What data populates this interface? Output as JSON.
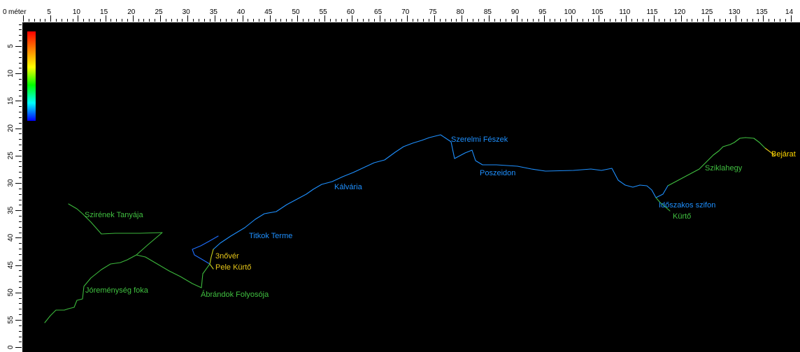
{
  "ruler": {
    "unit_label": "méter",
    "h_ticks": [
      "0",
      "5",
      "10",
      "15",
      "20",
      "25",
      "30",
      "35",
      "40",
      "45",
      "50",
      "55",
      "60",
      "65",
      "70",
      "75",
      "80",
      "85",
      "90",
      "95",
      "100",
      "105",
      "110",
      "115",
      "120",
      "125",
      "130",
      "135",
      "14"
    ],
    "v_ticks": [
      "5",
      "10",
      "15",
      "20",
      "25",
      "30",
      "35",
      "40",
      "45",
      "50",
      "55",
      "0"
    ]
  },
  "colors": {
    "background": "#000000",
    "ruler": "#ffffff",
    "deep": "#1e90ff",
    "shallow": "#33cc33",
    "surface": "#ffd700",
    "scale_gradient": [
      "#ff0000",
      "#ff8000",
      "#ffff00",
      "#00ff00",
      "#00ffff",
      "#0000ff"
    ]
  },
  "stations": [
    {
      "name": "Bejárat",
      "color": "surface"
    },
    {
      "name": "Sziklahegy",
      "color": "shallow"
    },
    {
      "name": "Időszakos szifon",
      "color": "deep"
    },
    {
      "name": "Kürtő",
      "color": "shallow"
    },
    {
      "name": "Poszeidon",
      "color": "deep"
    },
    {
      "name": "Szerelmi Fészek",
      "color": "deep"
    },
    {
      "name": "Kálvária",
      "color": "deep"
    },
    {
      "name": "Titkok Terme",
      "color": "deep"
    },
    {
      "name": "3nővér",
      "color": "surface"
    },
    {
      "name": "Pele Kürtő",
      "color": "surface"
    },
    {
      "name": "Ábrándok Folyosója",
      "color": "shallow"
    },
    {
      "name": "Szirének Tanyája",
      "color": "shallow"
    },
    {
      "name": "Jóreménység foka",
      "color": "shallow"
    }
  ]
}
